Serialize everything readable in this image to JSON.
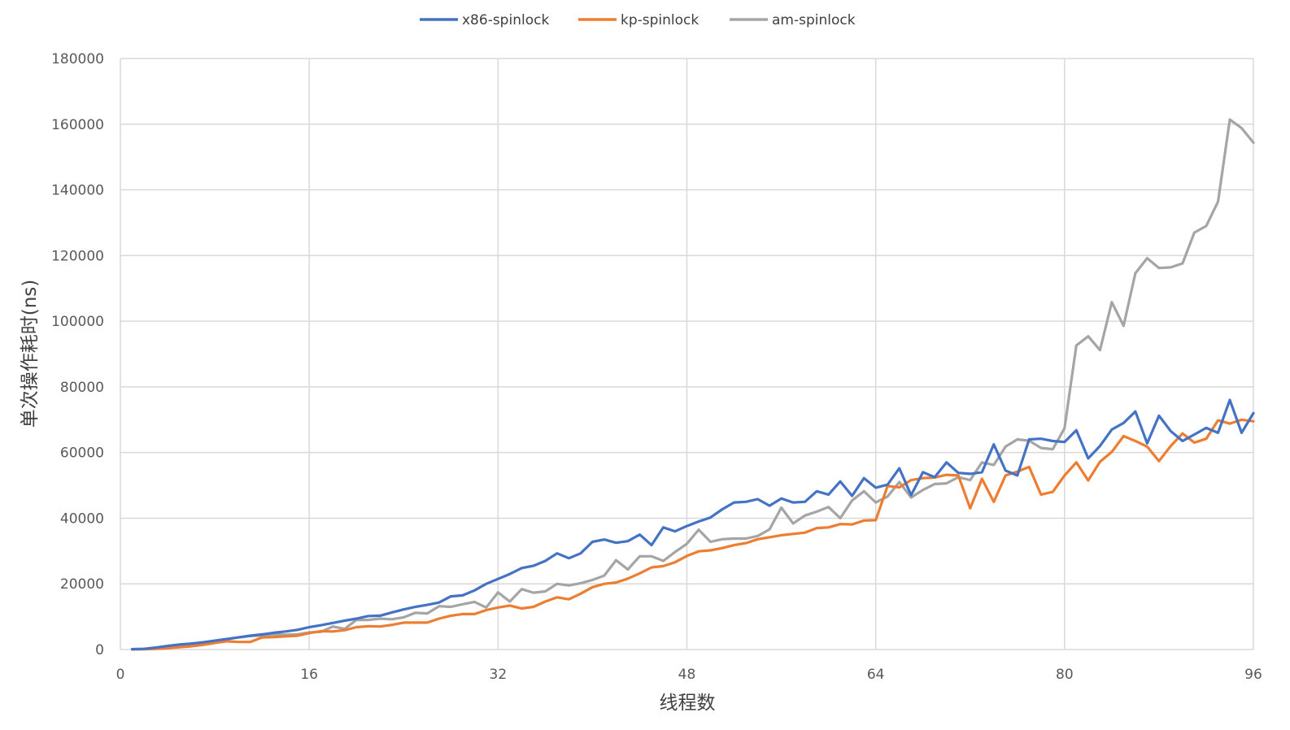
{
  "chart_data": {
    "type": "line",
    "title": "",
    "xlabel": "线程数",
    "ylabel": "单次操作耗时(ns)",
    "xlim": [
      0,
      96
    ],
    "ylim": [
      0,
      180000
    ],
    "xticks": [
      0,
      16,
      32,
      48,
      64,
      80,
      96
    ],
    "yticks": [
      0,
      20000,
      40000,
      60000,
      80000,
      100000,
      120000,
      140000,
      160000,
      180000
    ],
    "grid": true,
    "legend": "top-center",
    "x": [
      1,
      2,
      3,
      4,
      5,
      6,
      7,
      8,
      9,
      10,
      11,
      12,
      13,
      14,
      15,
      16,
      17,
      18,
      19,
      20,
      21,
      22,
      23,
      24,
      25,
      26,
      27,
      28,
      29,
      30,
      31,
      32,
      33,
      34,
      35,
      36,
      37,
      38,
      39,
      40,
      41,
      42,
      43,
      44,
      45,
      46,
      47,
      48,
      49,
      50,
      51,
      52,
      53,
      54,
      55,
      56,
      57,
      58,
      59,
      60,
      61,
      62,
      63,
      64,
      65,
      66,
      67,
      68,
      69,
      70,
      71,
      72,
      73,
      74,
      75,
      76,
      77,
      78,
      79,
      80,
      81,
      82,
      83,
      84,
      85,
      86,
      87,
      88,
      89,
      90,
      91,
      92,
      93,
      94,
      95,
      96
    ],
    "series": [
      {
        "name": "x86-spinlock",
        "color": "#4472C4",
        "values": [
          100,
          200,
          600,
          1100,
          1500,
          1800,
          2200,
          2700,
          3200,
          3700,
          4200,
          4600,
          5100,
          5500,
          6000,
          6800,
          7400,
          8100,
          8800,
          9400,
          10200,
          10300,
          11300,
          12200,
          13000,
          13600,
          14300,
          16200,
          16500,
          18000,
          20000,
          21500,
          23000,
          24800,
          25500,
          27000,
          29300,
          27800,
          29300,
          32800,
          33500,
          32500,
          33000,
          35000,
          31800,
          37200,
          36000,
          37600,
          39000,
          40200,
          42700,
          44800,
          45000,
          45800,
          43800,
          46000,
          44800,
          45000,
          48200,
          47200,
          51200,
          46800,
          52200,
          49300,
          50200,
          55200,
          47000,
          54000,
          52500,
          57000,
          53800,
          53500,
          54000,
          62500,
          54500,
          53000,
          64000,
          64200,
          63500,
          63200,
          66800,
          58200,
          62000,
          67000,
          69000,
          72500,
          62800,
          71200,
          66500,
          63500,
          65500,
          67500,
          66000,
          76000,
          66000,
          72000
        ]
      },
      {
        "name": "kp-spinlock",
        "color": "#ED7D31",
        "values": [
          50,
          100,
          200,
          400,
          700,
          1000,
          1400,
          2000,
          2500,
          2300,
          2300,
          3700,
          3800,
          4000,
          4200,
          5000,
          5600,
          5500,
          5900,
          6800,
          7100,
          7000,
          7500,
          8200,
          8200,
          8200,
          9400,
          10300,
          10800,
          10800,
          12000,
          12800,
          13400,
          12500,
          13000,
          14600,
          15900,
          15300,
          17000,
          19000,
          20000,
          20400,
          21600,
          23200,
          25000,
          25400,
          26600,
          28500,
          29900,
          30200,
          30900,
          31800,
          32400,
          33600,
          34200,
          34800,
          35200,
          35600,
          37000,
          37200,
          38200,
          38100,
          39300,
          39400,
          49800,
          49400,
          51600,
          52200,
          52400,
          53200,
          53000,
          43000,
          52000,
          45000,
          53000,
          54200,
          55600,
          47200,
          48000,
          53000,
          57000,
          51500,
          57200,
          60200,
          65000,
          63500,
          61800,
          57400,
          62000,
          65800,
          63000,
          64200,
          69800,
          68800,
          70000,
          69500
        ]
      },
      {
        "name": "am-spinlock",
        "color": "#A5A5A5",
        "values": [
          100,
          200,
          300,
          600,
          1000,
          1400,
          1800,
          2500,
          3100,
          3700,
          4100,
          4300,
          4600,
          4500,
          4600,
          5200,
          5400,
          7000,
          6300,
          9000,
          9000,
          9400,
          9200,
          9800,
          11200,
          11000,
          13200,
          13000,
          13800,
          14500,
          12800,
          17400,
          14600,
          18400,
          17300,
          17700,
          20000,
          19500,
          20200,
          21200,
          22500,
          27200,
          24400,
          28400,
          28400,
          27000,
          29700,
          32200,
          36500,
          32800,
          33600,
          33800,
          33800,
          34600,
          36600,
          43200,
          38400,
          40800,
          42000,
          43400,
          40000,
          45400,
          48200,
          44800,
          46600,
          51000,
          46300,
          48600,
          50400,
          50600,
          52500,
          51600,
          57000,
          56200,
          61800,
          64000,
          63600,
          61400,
          61000,
          67400,
          92600,
          95400,
          91200,
          105800,
          98600,
          114600,
          119200,
          116200,
          116400,
          117600,
          127000,
          129000,
          136400,
          161400,
          158800,
          154400
        ]
      }
    ]
  }
}
